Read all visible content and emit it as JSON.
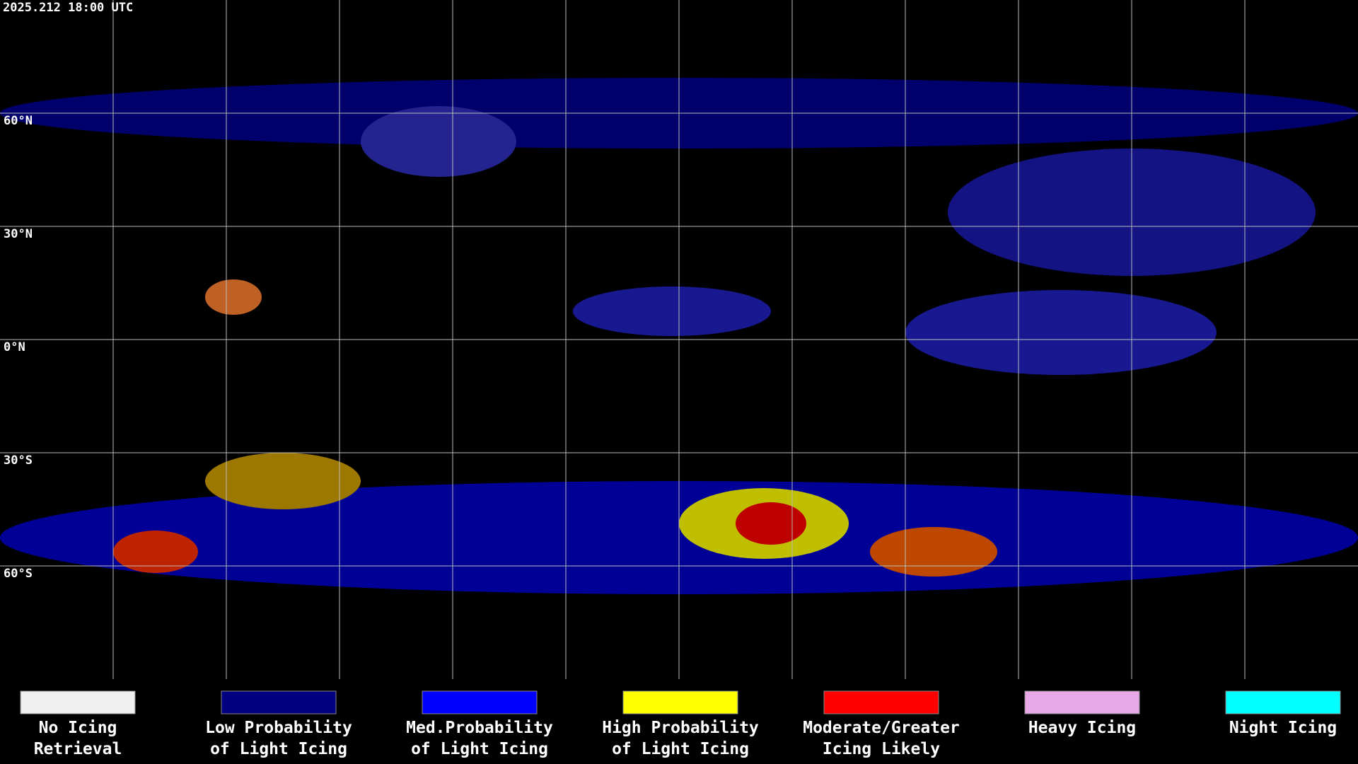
{
  "header": {
    "timestamp": "2025.212 18:00 UTC"
  },
  "map": {
    "lat_labels": [
      "60°N",
      "30°N",
      "0°N",
      "30°S",
      "60°S"
    ]
  },
  "legend": {
    "items": [
      {
        "color": "#f0f0f0",
        "lines": [
          "No Icing",
          "Retrieval"
        ]
      },
      {
        "color": "#000080",
        "lines": [
          "Low Probability",
          "of Light Icing"
        ]
      },
      {
        "color": "#0000ff",
        "lines": [
          "Med.Probability",
          "of Light Icing"
        ]
      },
      {
        "color": "#ffff00",
        "lines": [
          "High Probability",
          "of Light Icing"
        ]
      },
      {
        "color": "#ff0000",
        "lines": [
          "Moderate/Greater",
          "Icing Likely"
        ]
      },
      {
        "color": "#e8a8e8",
        "lines": [
          "Heavy Icing"
        ]
      },
      {
        "color": "#00ffff",
        "lines": [
          "Night Icing"
        ]
      }
    ]
  }
}
